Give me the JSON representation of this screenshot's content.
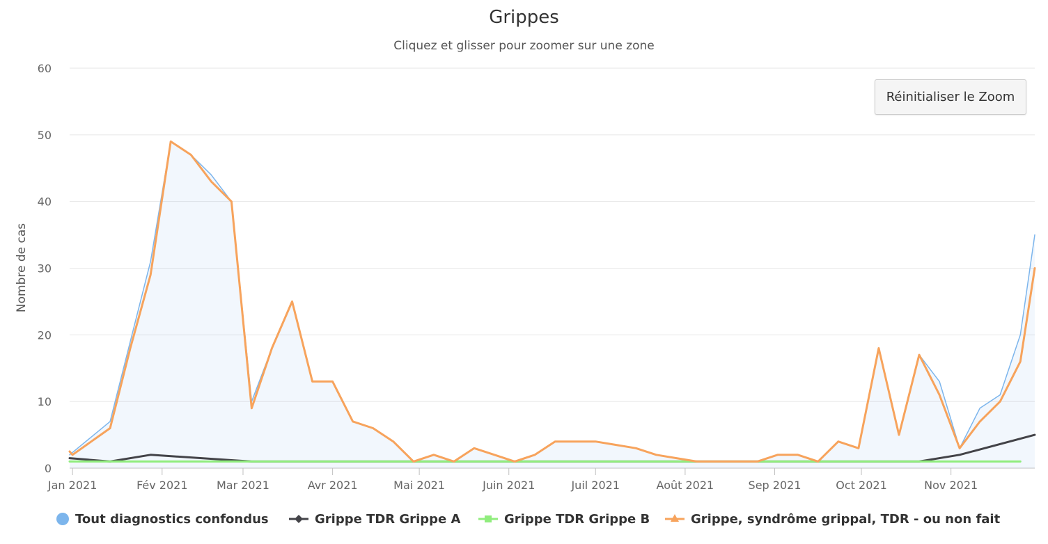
{
  "chart_data": {
    "type": "line",
    "title": "Grippes",
    "subtitle": "Cliquez et glisser pour zoomer sur une zone",
    "ylabel": "Nombre de cas",
    "xlabel": "",
    "ylim": [
      0,
      60
    ],
    "yticks": [
      0,
      10,
      20,
      30,
      40,
      50,
      60
    ],
    "xlim": [
      "2020-12-31",
      "2021-11-30"
    ],
    "xticks": [
      {
        "date": "2021-01-01",
        "label": "Jan 2021"
      },
      {
        "date": "2021-02-01",
        "label": "Fév 2021"
      },
      {
        "date": "2021-03-01",
        "label": "Mar 2021"
      },
      {
        "date": "2021-04-01",
        "label": "Avr 2021"
      },
      {
        "date": "2021-05-01",
        "label": "Mai 2021"
      },
      {
        "date": "2021-06-01",
        "label": "Juin 2021"
      },
      {
        "date": "2021-07-01",
        "label": "Juil 2021"
      },
      {
        "date": "2021-08-01",
        "label": "Août 2021"
      },
      {
        "date": "2021-09-01",
        "label": "Sep 2021"
      },
      {
        "date": "2021-10-01",
        "label": "Oct 2021"
      },
      {
        "date": "2021-11-01",
        "label": "Nov 2021"
      }
    ],
    "grid": true,
    "legend_position": "bottom",
    "series": [
      {
        "name": "Tout diagnostics confondus",
        "color": "#7cb5ec",
        "type": "area",
        "marker": "circle",
        "x": [
          "2020-12-31",
          "2021-01-07",
          "2021-01-14",
          "2021-01-21",
          "2021-01-28",
          "2021-02-04",
          "2021-02-11",
          "2021-02-18",
          "2021-02-25",
          "2021-03-04",
          "2021-03-11",
          "2021-03-18",
          "2021-03-25",
          "2021-04-01",
          "2021-04-08",
          "2021-04-15",
          "2021-04-22",
          "2021-04-29",
          "2021-05-06",
          "2021-05-13",
          "2021-05-20",
          "2021-05-27",
          "2021-06-03",
          "2021-06-10",
          "2021-06-17",
          "2021-06-24",
          "2021-07-01",
          "2021-07-08",
          "2021-07-15",
          "2021-07-22",
          "2021-07-29",
          "2021-08-05",
          "2021-08-12",
          "2021-08-19",
          "2021-08-26",
          "2021-09-02",
          "2021-09-09",
          "2021-09-16",
          "2021-09-23",
          "2021-09-30",
          "2021-10-07",
          "2021-10-14",
          "2021-10-21",
          "2021-10-28",
          "2021-11-04",
          "2021-11-11",
          "2021-11-18",
          "2021-11-25",
          "2021-11-30"
        ],
        "values": [
          2,
          4.5,
          7,
          19,
          31,
          49,
          47,
          44,
          40,
          10,
          18,
          25,
          13,
          13,
          7,
          6,
          4,
          1,
          2,
          1,
          3,
          2,
          1,
          2,
          4,
          4,
          4,
          3.5,
          3,
          2,
          1.5,
          1,
          1,
          1,
          1,
          2,
          2,
          1,
          4,
          3,
          18,
          5,
          17,
          13,
          3,
          9,
          11,
          20,
          35
        ]
      },
      {
        "name": "Grippe TDR Grippe A",
        "color": "#434348",
        "type": "line",
        "marker": "diamond",
        "x": [
          "2020-12-31",
          "2021-01-14",
          "2021-01-28",
          "2021-02-25",
          "2021-03-04",
          "2021-10-21",
          "2021-11-04",
          "2021-11-30"
        ],
        "values": [
          1.5,
          1,
          2,
          1.2,
          1,
          1,
          2,
          5
        ]
      },
      {
        "name": "Grippe TDR Grippe B",
        "color": "#90ed7d",
        "type": "line",
        "marker": "square",
        "x": [
          "2020-12-31",
          "2021-11-25"
        ],
        "values": [
          1,
          1
        ]
      },
      {
        "name": "Grippe, syndrôme grippal, TDR - ou non fait",
        "color": "#f7a35c",
        "type": "line",
        "marker": "triangle",
        "x": [
          "2020-12-31",
          "2021-01-01",
          "2021-01-14",
          "2021-01-21",
          "2021-01-28",
          "2021-02-04",
          "2021-02-11",
          "2021-02-18",
          "2021-02-25",
          "2021-03-04",
          "2021-03-11",
          "2021-03-18",
          "2021-03-25",
          "2021-04-01",
          "2021-04-08",
          "2021-04-15",
          "2021-04-22",
          "2021-04-29",
          "2021-05-06",
          "2021-05-13",
          "2021-05-20",
          "2021-05-27",
          "2021-06-03",
          "2021-06-10",
          "2021-06-17",
          "2021-06-24",
          "2021-07-01",
          "2021-07-08",
          "2021-07-15",
          "2021-07-22",
          "2021-07-29",
          "2021-08-05",
          "2021-08-12",
          "2021-08-19",
          "2021-08-26",
          "2021-09-02",
          "2021-09-09",
          "2021-09-16",
          "2021-09-23",
          "2021-09-30",
          "2021-10-07",
          "2021-10-14",
          "2021-10-21",
          "2021-10-28",
          "2021-11-04",
          "2021-11-11",
          "2021-11-18",
          "2021-11-25",
          "2021-11-30"
        ],
        "values": [
          2.5,
          2,
          6,
          18,
          29,
          49,
          47,
          43,
          40,
          9,
          18,
          25,
          13,
          13,
          7,
          6,
          4,
          1,
          2,
          1,
          3,
          2,
          1,
          2,
          4,
          4,
          4,
          3.5,
          3,
          2,
          1.5,
          1,
          1,
          1,
          1,
          2,
          2,
          1,
          4,
          3,
          18,
          5,
          17,
          11,
          3,
          7,
          10,
          16,
          30
        ]
      }
    ]
  },
  "reset_zoom_label": "Réinitialiser le Zoom"
}
